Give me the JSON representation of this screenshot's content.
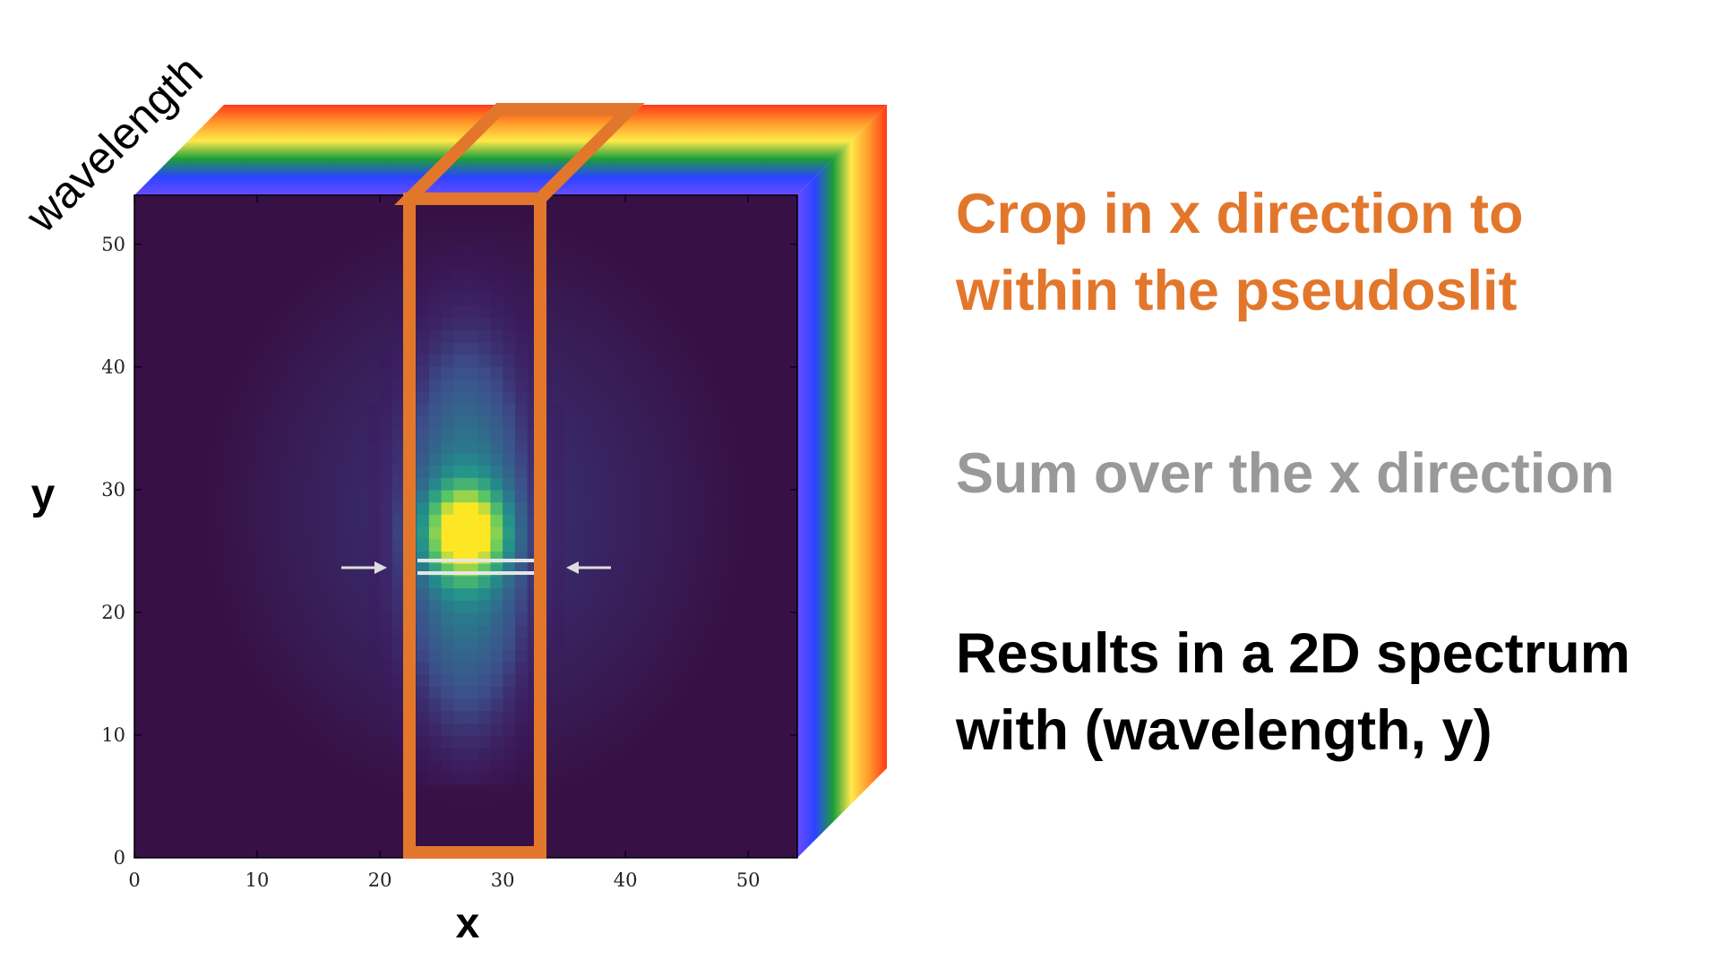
{
  "diagram": {
    "cube_depth_label": "wavelength",
    "axis_x_label": "x",
    "axis_y_label": "y",
    "x_ticks": [
      "0",
      "10",
      "20",
      "30",
      "40",
      "50"
    ],
    "y_ticks": [
      "0",
      "10",
      "20",
      "30",
      "40",
      "50"
    ],
    "x_range": [
      0,
      54
    ],
    "y_range": [
      0,
      54
    ],
    "pseudoslit_x_range": [
      22,
      33
    ],
    "marked_rows_y": [
      22.5,
      23.7
    ],
    "spectrum_colors": [
      "#6a4cff",
      "#2b44ff",
      "#1a9e3a",
      "#ffe84a",
      "#ff9a2a",
      "#ff3a1a"
    ],
    "colormap": "viridis",
    "highlight_color": "#e2772c"
  },
  "steps": [
    {
      "lines": [
        "Crop in x direction to",
        "within the pseudoslit"
      ],
      "color": "#e2772c"
    },
    {
      "lines": [
        "Sum over the x direction"
      ],
      "color": "#999999"
    },
    {
      "lines": [
        "Results in a 2D spectrum",
        "with (wavelength, y)"
      ],
      "color": "#000000"
    }
  ]
}
